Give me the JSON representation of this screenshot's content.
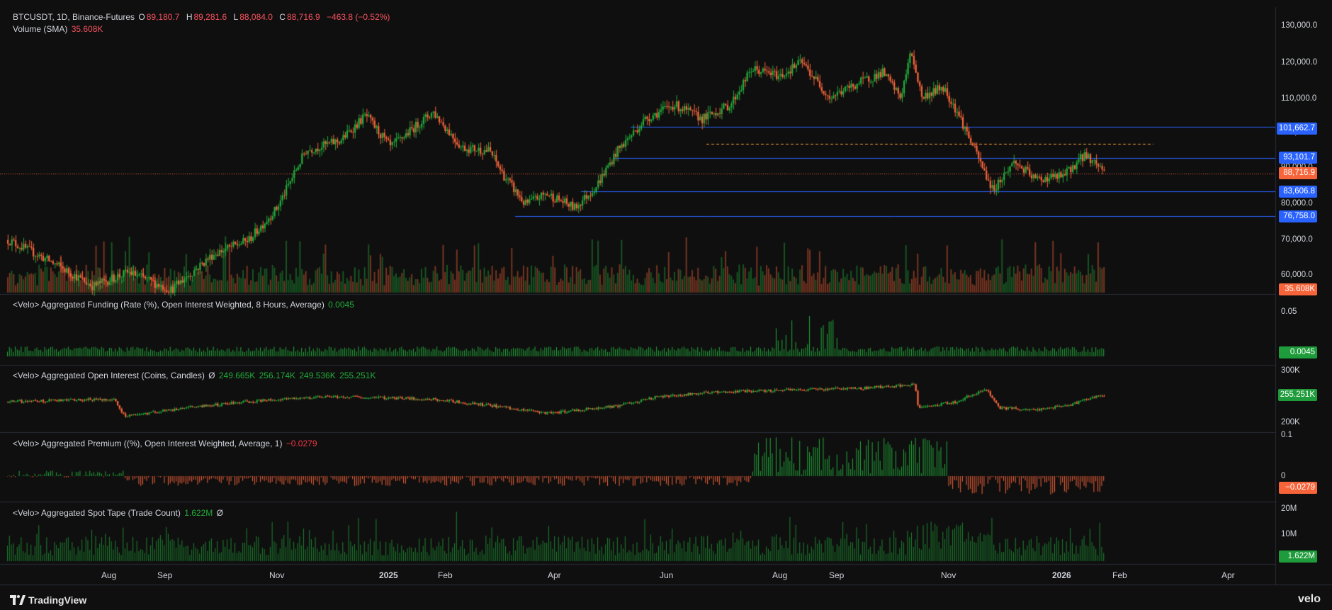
{
  "header": {
    "symbol_line": "BTCUSDT, 1D, Binance-Futures",
    "o_label": "O",
    "o_value": "89,180.7",
    "h_label": "H",
    "h_value": "89,281.6",
    "l_label": "L",
    "l_value": "88,084.0",
    "c_label": "C",
    "c_value": "88,716.9",
    "change": "−463.8 (−0.52%)",
    "volume_label": "Volume (SMA)",
    "volume_value": "35.608K"
  },
  "panes": {
    "funding": {
      "title": "<Velo> Aggregated Funding (Rate (%), Open Interest Weighted, 8 Hours, Average)",
      "value": "0.0045",
      "tick": "0.05",
      "tag": "0.0045"
    },
    "oi": {
      "title": "<Velo> Aggregated Open Interest (Coins, Candles)",
      "symbol": "Ø",
      "o": "249.665K",
      "h": "256.174K",
      "l": "249.536K",
      "c": "255.251K",
      "ticks": [
        "300K",
        "200K"
      ],
      "tag": "255.251K"
    },
    "premium": {
      "title": "<Velo> Aggregated Premium ((%), Open Interest Weighted, Average, 1)",
      "value": "−0.0279",
      "ticks": [
        "0.1",
        "0"
      ],
      "tag": "−0.0279"
    },
    "spot": {
      "title": "<Velo> Aggregated Spot Tape (Trade Count)",
      "value": "1.622M",
      "symbol": "Ø",
      "ticks": [
        "20M",
        "10M"
      ],
      "tag": "1.622M"
    }
  },
  "price_axis": {
    "ticks": [
      "130,000.0",
      "120,000.0",
      "110,000.0",
      "100,000.0",
      "90,000.0",
      "80,000.0",
      "70,000.0",
      "60,000.0"
    ],
    "tags": [
      {
        "label": "101,662.7",
        "color": "#2962ff"
      },
      {
        "label": "93,101.7",
        "color": "#2962ff"
      },
      {
        "label": "88,716.9",
        "color": "#f7643a"
      },
      {
        "label": "83,606.8",
        "color": "#2962ff"
      },
      {
        "label": "76,758.0",
        "color": "#2962ff"
      },
      {
        "label": "35.608K",
        "color": "#f7643a"
      }
    ]
  },
  "time_axis": [
    "Aug",
    "Sep",
    "Nov",
    "2025",
    "Feb",
    "Apr",
    "Jun",
    "Aug",
    "Sep",
    "Nov",
    "2026",
    "Feb",
    "Apr"
  ],
  "branding": {
    "left": "TradingView",
    "right": "velo"
  },
  "chart_data": {
    "type": "line",
    "title": "",
    "candle_type": "candlestick",
    "interval": "1D",
    "ylim": [
      55000,
      132000
    ],
    "series": [
      {
        "name": "BTCUSDT",
        "x": [
          "2024-07",
          "2024-08",
          "2024-09",
          "2024-10",
          "2024-11",
          "2024-12",
          "2025-01",
          "2025-02",
          "2025-03",
          "2025-04",
          "2025-05",
          "2025-06",
          "2025-07",
          "2025-08",
          "2025-09",
          "2025-10",
          "2025-11",
          "2025-12",
          "2026-01"
        ],
        "values": [
          66000,
          59000,
          63000,
          68000,
          96000,
          94000,
          102000,
          84000,
          82000,
          94000,
          104000,
          107000,
          118000,
          109000,
          114000,
          110000,
          90000,
          87500,
          88716.9
        ]
      }
    ],
    "horizontal_levels": [
      101662.7,
      93101.7,
      83606.8,
      76758.0,
      97000
    ]
  },
  "colors": {
    "up": "#22ab3a",
    "down": "#f7643a",
    "level": "#2962ff",
    "bg": "#0f0f0f"
  }
}
